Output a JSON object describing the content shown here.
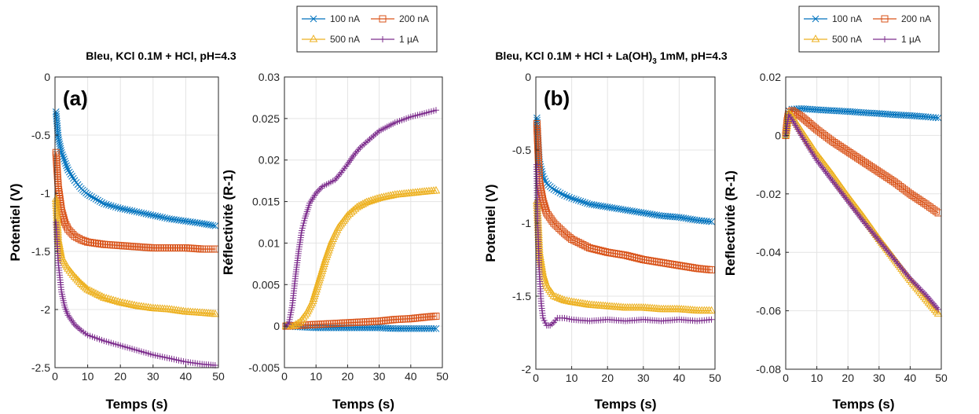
{
  "colors": {
    "blue": "#0072BD",
    "orange": "#D95319",
    "yellow": "#EDB120",
    "purple": "#7E2F8E"
  },
  "legend_entries": [
    "100 nA",
    "200 nA",
    "500 nA",
    "1 µA"
  ],
  "legend_markers": [
    "x",
    "square",
    "triangle",
    "plus"
  ],
  "groups": [
    {
      "title": "Bleu, KCl 0.1M + HCl, pH=4.3",
      "title_parts": []
    },
    {
      "title": "",
      "title_parts": [
        "Bleu, KCl 0.1M + HCl + La(OH)",
        "3",
        " 1mM, pH=4.3"
      ]
    }
  ],
  "chart_data": [
    {
      "type": "line",
      "panel_label": "(a)",
      "xlabel": "Temps (s)",
      "ylabel": "Potentiel (V)",
      "xlim": [
        0,
        50
      ],
      "ylim": [
        -2.5,
        0
      ],
      "xticks": [
        0,
        10,
        20,
        30,
        40,
        50
      ],
      "yticks": [
        0,
        -0.5,
        -1,
        -1.5,
        -2,
        -2.5
      ],
      "xtick_labels": [
        "0",
        "10",
        "20",
        "30",
        "40",
        "50"
      ],
      "ytick_labels": [
        "0",
        "-0.5",
        "-1",
        "-1.5",
        "-2",
        "-2.5"
      ],
      "grid": true,
      "series": [
        {
          "name": "100 nA",
          "color": "#0072BD",
          "marker": "x",
          "x": [
            0.3,
            1,
            2,
            4,
            6,
            8,
            10,
            15,
            20,
            25,
            30,
            35,
            40,
            45,
            49
          ],
          "y": [
            -0.3,
            -0.52,
            -0.65,
            -0.8,
            -0.89,
            -0.96,
            -1.01,
            -1.09,
            -1.13,
            -1.16,
            -1.19,
            -1.22,
            -1.24,
            -1.26,
            -1.28
          ]
        },
        {
          "name": "200 nA",
          "color": "#D95319",
          "marker": "square",
          "x": [
            0.3,
            1,
            2,
            3,
            4,
            6,
            8,
            10,
            15,
            20,
            25,
            30,
            35,
            40,
            45,
            49
          ],
          "y": [
            -0.65,
            -0.95,
            -1.15,
            -1.25,
            -1.31,
            -1.37,
            -1.4,
            -1.42,
            -1.44,
            -1.45,
            -1.46,
            -1.47,
            -1.47,
            -1.47,
            -1.48,
            -1.48
          ]
        },
        {
          "name": "500 nA",
          "color": "#EDB120",
          "marker": "triangle",
          "x": [
            0.3,
            1,
            2,
            4,
            6,
            8,
            10,
            15,
            20,
            25,
            30,
            35,
            40,
            45,
            49
          ],
          "y": [
            -1.05,
            -1.4,
            -1.55,
            -1.65,
            -1.72,
            -1.78,
            -1.83,
            -1.9,
            -1.94,
            -1.97,
            -1.99,
            -2.0,
            -2.02,
            -2.03,
            -2.04
          ]
        },
        {
          "name": "1 µA",
          "color": "#7E2F8E",
          "marker": "plus",
          "x": [
            0.3,
            1,
            2,
            3,
            4,
            6,
            8,
            10,
            15,
            20,
            25,
            30,
            35,
            40,
            45,
            49
          ],
          "y": [
            -1.25,
            -1.6,
            -1.85,
            -1.98,
            -2.05,
            -2.13,
            -2.18,
            -2.22,
            -2.27,
            -2.31,
            -2.35,
            -2.39,
            -2.42,
            -2.45,
            -2.47,
            -2.48
          ]
        }
      ]
    },
    {
      "type": "line",
      "panel_label": "",
      "xlabel": "Temps (s)",
      "ylabel": "Réflectivité  (R-1)",
      "xlim": [
        0,
        50
      ],
      "ylim": [
        -0.005,
        0.03
      ],
      "xticks": [
        0,
        10,
        20,
        30,
        40,
        50
      ],
      "yticks": [
        -0.005,
        0,
        0.005,
        0.01,
        0.015,
        0.02,
        0.025,
        0.03
      ],
      "xtick_labels": [
        "0",
        "10",
        "20",
        "30",
        "40",
        "50"
      ],
      "ytick_labels": [
        "-0.005",
        "0",
        "0.005",
        "0.01",
        "0.015",
        "0.02",
        "0.025",
        "0.03"
      ],
      "grid": true,
      "series": [
        {
          "name": "100 nA",
          "color": "#0072BD",
          "marker": "x",
          "x": [
            0.5,
            5,
            10,
            15,
            20,
            25,
            30,
            35,
            40,
            45,
            48
          ],
          "y": [
            0,
            -0.0001,
            -0.0002,
            -0.0002,
            -0.0002,
            -0.0002,
            -0.0002,
            -0.0003,
            -0.0003,
            -0.0003,
            -0.0003
          ]
        },
        {
          "name": "200 nA",
          "color": "#D95319",
          "marker": "square",
          "x": [
            0.5,
            5,
            10,
            15,
            20,
            25,
            30,
            35,
            40,
            45,
            48
          ],
          "y": [
            0,
            0.0001,
            0.0002,
            0.0003,
            0.0004,
            0.0005,
            0.0006,
            0.0008,
            0.0009,
            0.0011,
            0.0012
          ]
        },
        {
          "name": "500 nA",
          "color": "#EDB120",
          "marker": "triangle",
          "x": [
            0.5,
            3,
            5,
            7,
            9,
            11,
            13,
            15,
            17,
            20,
            23,
            26,
            30,
            35,
            40,
            45,
            48
          ],
          "y": [
            0,
            0,
            0.0005,
            0.0015,
            0.003,
            0.0055,
            0.008,
            0.0102,
            0.0118,
            0.0133,
            0.0143,
            0.0149,
            0.0154,
            0.0158,
            0.016,
            0.0162,
            0.0163
          ]
        },
        {
          "name": "1 µA",
          "color": "#7E2F8E",
          "marker": "plus",
          "x": [
            0.5,
            1.5,
            2.5,
            3.5,
            4.5,
            5.5,
            6.5,
            8,
            10,
            12,
            14,
            16,
            18,
            20,
            22,
            24,
            27,
            30,
            35,
            40,
            45,
            48
          ],
          "y": [
            0,
            0.0005,
            0.0025,
            0.006,
            0.009,
            0.0115,
            0.013,
            0.0148,
            0.016,
            0.0168,
            0.0172,
            0.0176,
            0.0185,
            0.0195,
            0.0206,
            0.0215,
            0.0225,
            0.0235,
            0.0245,
            0.0252,
            0.0257,
            0.026
          ]
        }
      ]
    },
    {
      "type": "line",
      "panel_label": "(b)",
      "xlabel": "Temps (s)",
      "ylabel": "Potentiel (V)",
      "xlim": [
        0,
        50
      ],
      "ylim": [
        -2,
        0
      ],
      "xticks": [
        0,
        10,
        20,
        30,
        40,
        50
      ],
      "yticks": [
        0,
        -0.5,
        -1,
        -1.5,
        -2
      ],
      "xtick_labels": [
        "0",
        "10",
        "20",
        "30",
        "40",
        "50"
      ],
      "ytick_labels": [
        "0",
        "-0.5",
        "-1",
        "-1.5",
        "-2"
      ],
      "grid": true,
      "series": [
        {
          "name": "100 nA",
          "color": "#0072BD",
          "marker": "x",
          "x": [
            0.3,
            0.7,
            1,
            2,
            3,
            5,
            8,
            10,
            15,
            20,
            25,
            30,
            35,
            40,
            45,
            49
          ],
          "y": [
            -0.28,
            -0.45,
            -0.58,
            -0.68,
            -0.73,
            -0.77,
            -0.81,
            -0.83,
            -0.87,
            -0.89,
            -0.91,
            -0.93,
            -0.95,
            -0.96,
            -0.98,
            -0.99
          ]
        },
        {
          "name": "200 nA",
          "color": "#D95319",
          "marker": "square",
          "x": [
            0.3,
            0.7,
            1,
            2,
            3,
            5,
            8,
            10,
            15,
            20,
            25,
            30,
            35,
            40,
            45,
            49
          ],
          "y": [
            -0.32,
            -0.55,
            -0.72,
            -0.85,
            -0.93,
            -1.0,
            -1.07,
            -1.11,
            -1.17,
            -1.2,
            -1.22,
            -1.25,
            -1.27,
            -1.29,
            -1.31,
            -1.32
          ]
        },
        {
          "name": "500 nA",
          "color": "#EDB120",
          "marker": "triangle",
          "x": [
            0.3,
            0.7,
            1,
            2,
            3,
            5,
            8,
            10,
            15,
            20,
            25,
            30,
            35,
            40,
            45,
            49
          ],
          "y": [
            -0.85,
            -1.05,
            -1.2,
            -1.35,
            -1.43,
            -1.5,
            -1.53,
            -1.54,
            -1.56,
            -1.57,
            -1.58,
            -1.58,
            -1.59,
            -1.59,
            -1.6,
            -1.6
          ]
        },
        {
          "name": "1 µA",
          "color": "#7E2F8E",
          "marker": "plus",
          "x": [
            0.2,
            0.5,
            1,
            1.5,
            2,
            3,
            4,
            5,
            6,
            8,
            10,
            15,
            20,
            25,
            30,
            35,
            40,
            45,
            49
          ],
          "y": [
            -0.6,
            -1.0,
            -1.35,
            -1.55,
            -1.65,
            -1.7,
            -1.7,
            -1.68,
            -1.65,
            -1.65,
            -1.66,
            -1.67,
            -1.66,
            -1.67,
            -1.66,
            -1.67,
            -1.66,
            -1.67,
            -1.66
          ]
        }
      ]
    },
    {
      "type": "line",
      "panel_label": "",
      "xlabel": "Temps (s)",
      "ylabel": "Reflectivité  (R-1)",
      "xlim": [
        0,
        50
      ],
      "ylim": [
        -0.08,
        0.02
      ],
      "xticks": [
        0,
        10,
        20,
        30,
        40,
        50
      ],
      "yticks": [
        -0.08,
        -0.06,
        -0.04,
        -0.02,
        0,
        0.02
      ],
      "xtick_labels": [
        "0",
        "10",
        "20",
        "30",
        "40",
        "50"
      ],
      "ytick_labels": [
        "-0.08",
        "-0.06",
        "-0.04",
        "-0.02",
        "0",
        "0.02"
      ],
      "grid": true,
      "series": [
        {
          "name": "100 nA",
          "color": "#0072BD",
          "marker": "x",
          "x": [
            0,
            0.5,
            1,
            2,
            5,
            10,
            15,
            20,
            25,
            30,
            35,
            40,
            45,
            49
          ],
          "y": [
            0,
            0.005,
            0.0085,
            0.009,
            0.0092,
            0.0088,
            0.0085,
            0.0082,
            0.0078,
            0.0075,
            0.0071,
            0.0068,
            0.0064,
            0.006
          ]
        },
        {
          "name": "200 nA",
          "color": "#D95319",
          "marker": "square",
          "x": [
            0,
            0.5,
            1,
            2,
            5,
            10,
            15,
            20,
            25,
            30,
            35,
            40,
            45,
            49
          ],
          "y": [
            0,
            0.005,
            0.008,
            0.0085,
            0.0065,
            0.002,
            -0.002,
            -0.0055,
            -0.009,
            -0.0125,
            -0.016,
            -0.02,
            -0.0235,
            -0.0265
          ]
        },
        {
          "name": "500 nA",
          "color": "#EDB120",
          "marker": "triangle",
          "x": [
            0,
            0.5,
            1,
            2,
            5,
            10,
            15,
            20,
            25,
            30,
            35,
            40,
            45,
            49
          ],
          "y": [
            0,
            0.004,
            0.0075,
            0.0065,
            0.0015,
            -0.0065,
            -0.0135,
            -0.021,
            -0.028,
            -0.0355,
            -0.0425,
            -0.0495,
            -0.056,
            -0.061
          ]
        },
        {
          "name": "1 µA",
          "color": "#7E2F8E",
          "marker": "plus",
          "x": [
            0,
            0.5,
            1,
            2,
            5,
            10,
            15,
            20,
            25,
            30,
            35,
            40,
            45,
            49
          ],
          "y": [
            0,
            0.004,
            0.007,
            0.0055,
            0.0,
            -0.0085,
            -0.0155,
            -0.0225,
            -0.0295,
            -0.036,
            -0.0425,
            -0.049,
            -0.0545,
            -0.0595
          ]
        }
      ]
    }
  ]
}
